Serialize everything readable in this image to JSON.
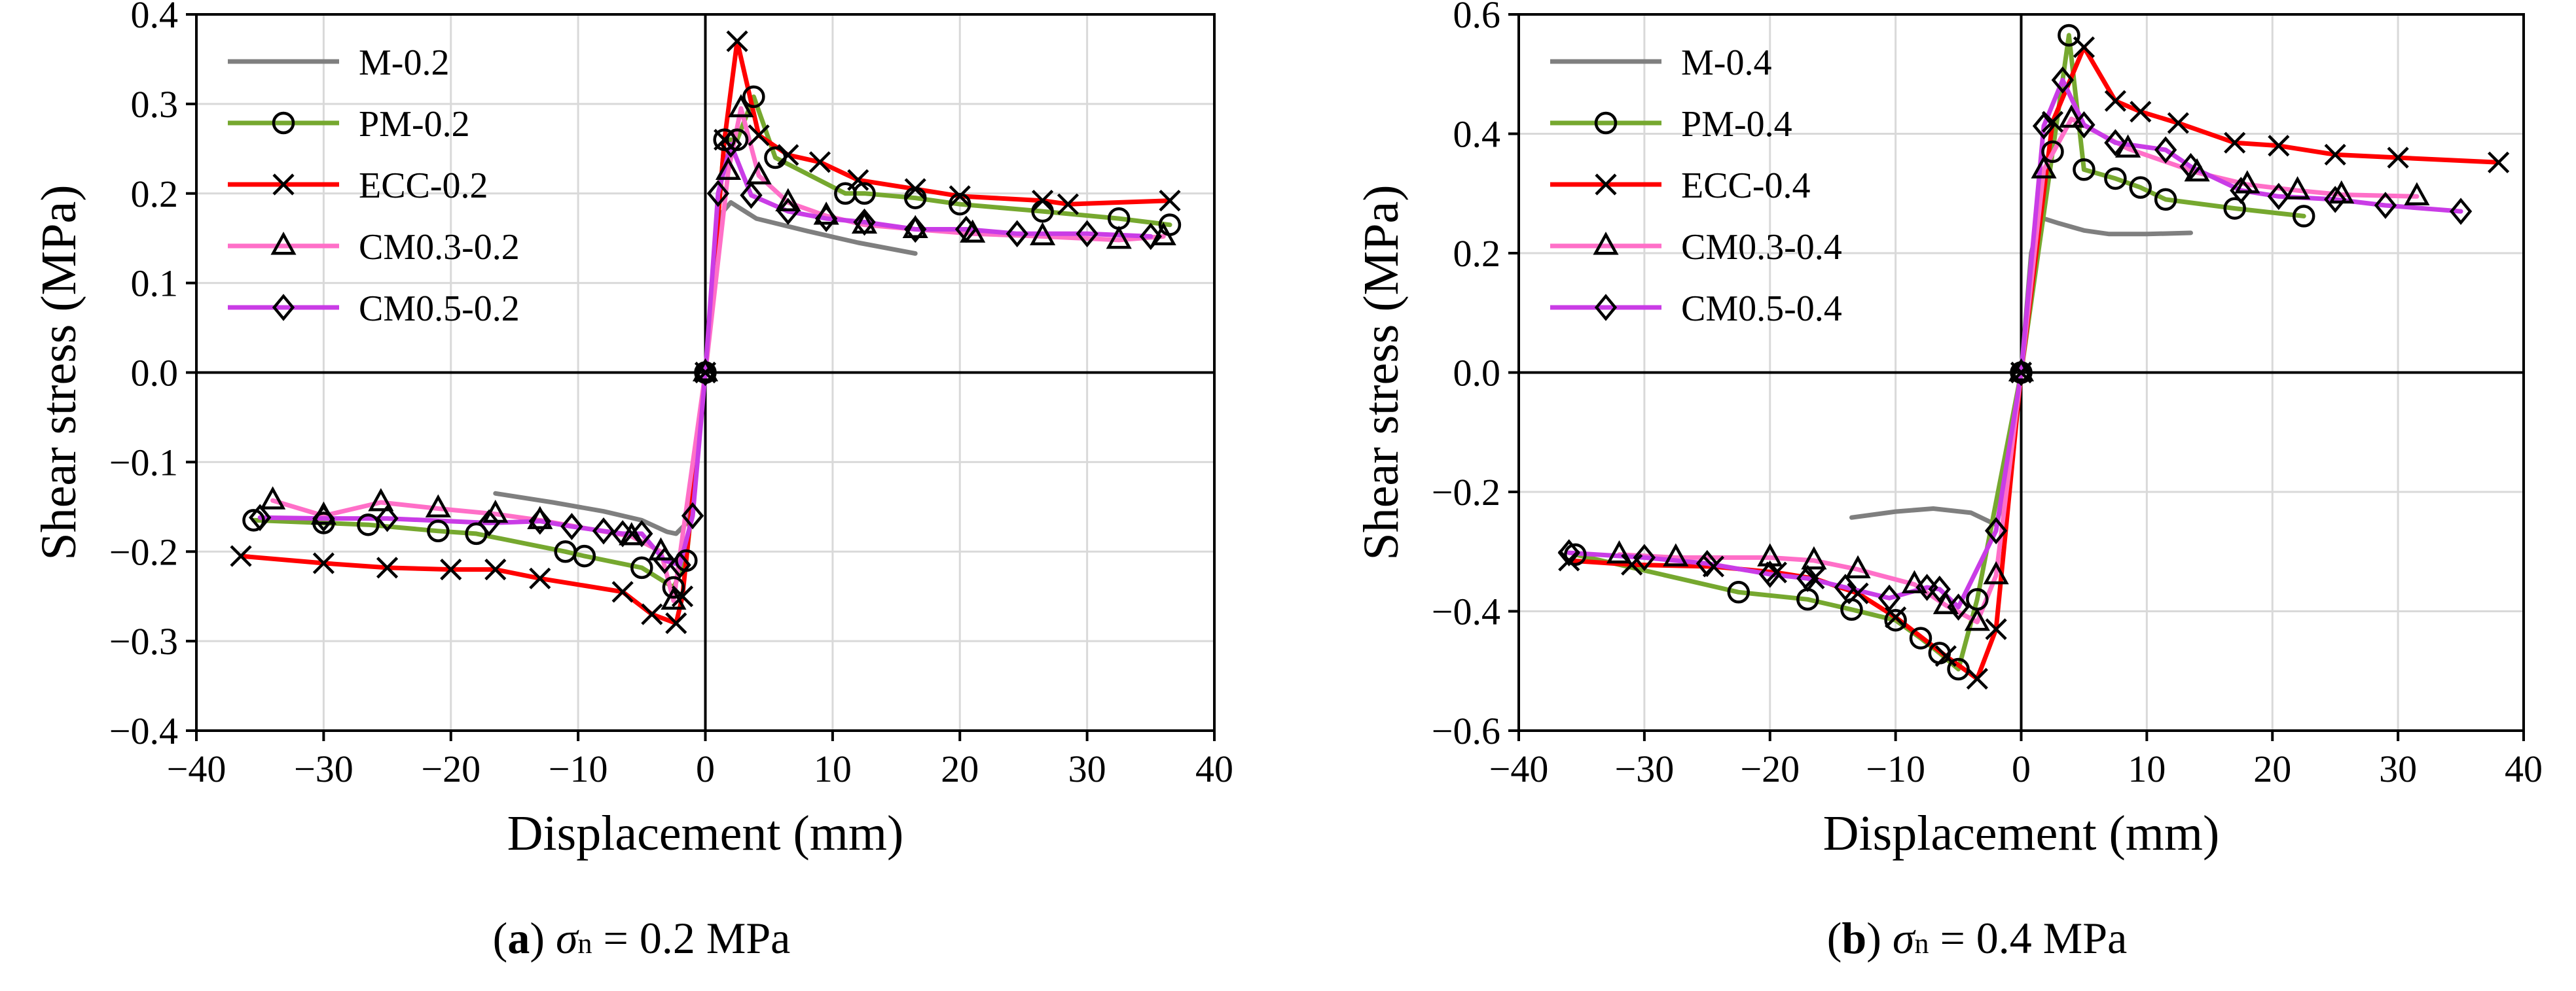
{
  "chart_data": [
    {
      "type": "line",
      "panel_label": "a",
      "caption_symbol": "σ",
      "caption_subscript": "n",
      "caption_value": " = 0.2 MPa",
      "xlabel": "Displacement (mm)",
      "ylabel": "Shear stress (MPa)",
      "xlim": [
        -40,
        40
      ],
      "ylim": [
        -0.4,
        0.4
      ],
      "xticks": [
        -40,
        -30,
        -20,
        -10,
        0,
        10,
        20,
        30,
        40
      ],
      "xtick_labels": [
        "−40",
        "−30",
        "−20",
        "−10",
        "0",
        "10",
        "20",
        "30",
        "40"
      ],
      "yticks": [
        -0.4,
        -0.3,
        -0.2,
        -0.1,
        0,
        0.1,
        0.2,
        0.3,
        0.4
      ],
      "ytick_labels": [
        "−0.4",
        "−0.3",
        "−0.2",
        "−0.1",
        "0.0",
        "0.1",
        "0.2",
        "0.3",
        "0.4"
      ],
      "grid": true,
      "legend_position": "top-left",
      "series": [
        {
          "name": "M-0.2",
          "color": "#7f7f7f",
          "marker": "none",
          "x": [
            -16.5,
            -12,
            -8,
            -5,
            -3,
            -2.3,
            -1.6,
            -1,
            0,
            0.8,
            1.4,
            2,
            4,
            8,
            12,
            16.5
          ],
          "y": [
            -0.135,
            -0.145,
            -0.155,
            -0.165,
            -0.178,
            -0.18,
            -0.17,
            -0.12,
            0,
            0.12,
            0.18,
            0.19,
            0.172,
            0.158,
            0.145,
            0.133
          ]
        },
        {
          "name": "PM-0.2",
          "color": "#76a82f",
          "marker": "circle",
          "x": [
            -35.5,
            -30,
            -26.5,
            -21,
            -18,
            -11,
            -9.5,
            -5,
            -2.5,
            -1.5,
            0,
            1.5,
            2.5,
            3.8,
            5.5,
            11,
            12.5,
            16.5,
            20,
            26.5,
            32.5,
            36.5
          ],
          "y": [
            -0.165,
            -0.168,
            -0.17,
            -0.177,
            -0.18,
            -0.2,
            -0.205,
            -0.218,
            -0.24,
            -0.21,
            0,
            0.26,
            0.26,
            0.308,
            0.24,
            0.2,
            0.2,
            0.195,
            0.188,
            0.18,
            0.172,
            0.165
          ]
        },
        {
          "name": "ECC-0.2",
          "color": "#ff0000",
          "marker": "x",
          "x": [
            -36.5,
            -30,
            -25,
            -20,
            -16.5,
            -13,
            -6.5,
            -4.2,
            -2.3,
            -1.8,
            0,
            1.5,
            2.5,
            4.2,
            6.5,
            9,
            12,
            16.5,
            20,
            26.5,
            28.5,
            36.5
          ],
          "y": [
            -0.205,
            -0.213,
            -0.218,
            -0.22,
            -0.22,
            -0.23,
            -0.245,
            -0.27,
            -0.28,
            -0.25,
            0,
            0.26,
            0.37,
            0.265,
            0.243,
            0.235,
            0.215,
            0.205,
            0.197,
            0.192,
            0.188,
            0.192
          ]
        },
        {
          "name": "CM0.3-0.2",
          "color": "#ff6fc8",
          "marker": "triangle",
          "x": [
            -34,
            -30,
            -25.5,
            -21,
            -16.5,
            -13,
            -5.8,
            -3.5,
            -2.5,
            0,
            1.8,
            2.8,
            4.2,
            6.5,
            9.5,
            12.5,
            16.5,
            21,
            26.5,
            32.5,
            36
          ],
          "y": [
            -0.143,
            -0.16,
            -0.145,
            -0.152,
            -0.158,
            -0.165,
            -0.183,
            -0.2,
            -0.255,
            0,
            0.225,
            0.295,
            0.22,
            0.19,
            0.175,
            0.165,
            0.16,
            0.155,
            0.152,
            0.148,
            0.152
          ]
        },
        {
          "name": "CM0.5-0.2",
          "color": "#c93ce6",
          "marker": "diamond",
          "x": [
            -35,
            -30,
            -25,
            -17,
            -13,
            -10.5,
            -8,
            -6.5,
            -5,
            -3.2,
            -2,
            -1,
            0,
            1,
            2,
            3.6,
            6.5,
            9.5,
            12.5,
            16.5,
            20.5,
            24.5,
            30,
            35
          ],
          "y": [
            -0.162,
            -0.163,
            -0.163,
            -0.168,
            -0.166,
            -0.172,
            -0.177,
            -0.18,
            -0.18,
            -0.21,
            -0.215,
            -0.16,
            0,
            0.2,
            0.255,
            0.198,
            0.18,
            0.172,
            0.168,
            0.16,
            0.16,
            0.155,
            0.155,
            0.152
          ]
        }
      ]
    },
    {
      "type": "line",
      "panel_label": "b",
      "caption_symbol": "σ",
      "caption_subscript": "n",
      "caption_value": " = 0.4 MPa",
      "xlabel": "Displacement (mm)",
      "ylabel": "Shear stress (MPa)",
      "xlim": [
        -40,
        40
      ],
      "ylim": [
        -0.6,
        0.6
      ],
      "xticks": [
        -40,
        -30,
        -20,
        -10,
        0,
        10,
        20,
        30,
        40
      ],
      "xtick_labels": [
        "−40",
        "−30",
        "−20",
        "−10",
        "0",
        "10",
        "20",
        "30",
        "40"
      ],
      "yticks": [
        -0.6,
        -0.4,
        -0.2,
        0,
        0.2,
        0.4,
        0.6
      ],
      "ytick_labels": [
        "−0.6",
        "−0.4",
        "−0.2",
        "0.0",
        "0.2",
        "0.4",
        "0.6"
      ],
      "grid": true,
      "legend_position": "top-left",
      "series": [
        {
          "name": "M-0.4",
          "color": "#7f7f7f",
          "marker": "none",
          "x": [
            -13.5,
            -10,
            -7,
            -4,
            -2,
            -1,
            0,
            0.8,
            1.5,
            3,
            5,
            7,
            10,
            13.5
          ],
          "y": [
            -0.243,
            -0.233,
            -0.228,
            -0.235,
            -0.255,
            -0.18,
            0,
            0.2,
            0.26,
            0.25,
            0.238,
            0.232,
            0.232,
            0.234
          ]
        },
        {
          "name": "PM-0.4",
          "color": "#76a82f",
          "marker": "circle",
          "x": [
            -35.5,
            -22.5,
            -17,
            -13.5,
            -10,
            -8,
            -6.5,
            -5,
            -3.5,
            0,
            2.5,
            3.8,
            5,
            7.5,
            9.5,
            11.5,
            17,
            22.5
          ],
          "y": [
            -0.305,
            -0.368,
            -0.38,
            -0.397,
            -0.415,
            -0.445,
            -0.47,
            -0.497,
            -0.38,
            0,
            0.37,
            0.565,
            0.34,
            0.325,
            0.31,
            0.29,
            0.275,
            0.262
          ]
        },
        {
          "name": "ECC-0.4",
          "color": "#ff0000",
          "marker": "x",
          "x": [
            -36,
            -31,
            -24.5,
            -19.5,
            -16.5,
            -13,
            -10,
            -6,
            -3.5,
            -2,
            0,
            2.5,
            5,
            7.5,
            9.5,
            12.5,
            17,
            20.5,
            25,
            30,
            38
          ],
          "y": [
            -0.315,
            -0.322,
            -0.325,
            -0.335,
            -0.345,
            -0.37,
            -0.41,
            -0.475,
            -0.513,
            -0.43,
            0,
            0.42,
            0.545,
            0.455,
            0.437,
            0.418,
            0.385,
            0.38,
            0.365,
            0.36,
            0.352
          ]
        },
        {
          "name": "CM0.3-0.4",
          "color": "#ff6fc8",
          "marker": "triangle",
          "x": [
            -32,
            -27.5,
            -20,
            -16.5,
            -13,
            -8.5,
            -6,
            -3.5,
            -2,
            0,
            1.8,
            4,
            8.5,
            14,
            18,
            22,
            25.5,
            31.5
          ],
          "y": [
            -0.305,
            -0.31,
            -0.31,
            -0.315,
            -0.33,
            -0.355,
            -0.39,
            -0.418,
            -0.34,
            0,
            0.34,
            0.425,
            0.375,
            0.335,
            0.315,
            0.305,
            0.298,
            0.295
          ]
        },
        {
          "name": "CM0.5-0.4",
          "color": "#c93ce6",
          "marker": "diamond",
          "x": [
            -36,
            -30,
            -25,
            -20,
            -17,
            -14,
            -10.5,
            -7.5,
            -6.5,
            -5,
            -2,
            0,
            1.8,
            3.3,
            5,
            7.5,
            11.5,
            13.5,
            17.5,
            20.5,
            25,
            29,
            35
          ],
          "y": [
            -0.302,
            -0.31,
            -0.32,
            -0.338,
            -0.345,
            -0.36,
            -0.378,
            -0.36,
            -0.363,
            -0.393,
            -0.265,
            0,
            0.413,
            0.49,
            0.415,
            0.385,
            0.373,
            0.345,
            0.305,
            0.295,
            0.29,
            0.28,
            0.27
          ]
        }
      ]
    }
  ]
}
